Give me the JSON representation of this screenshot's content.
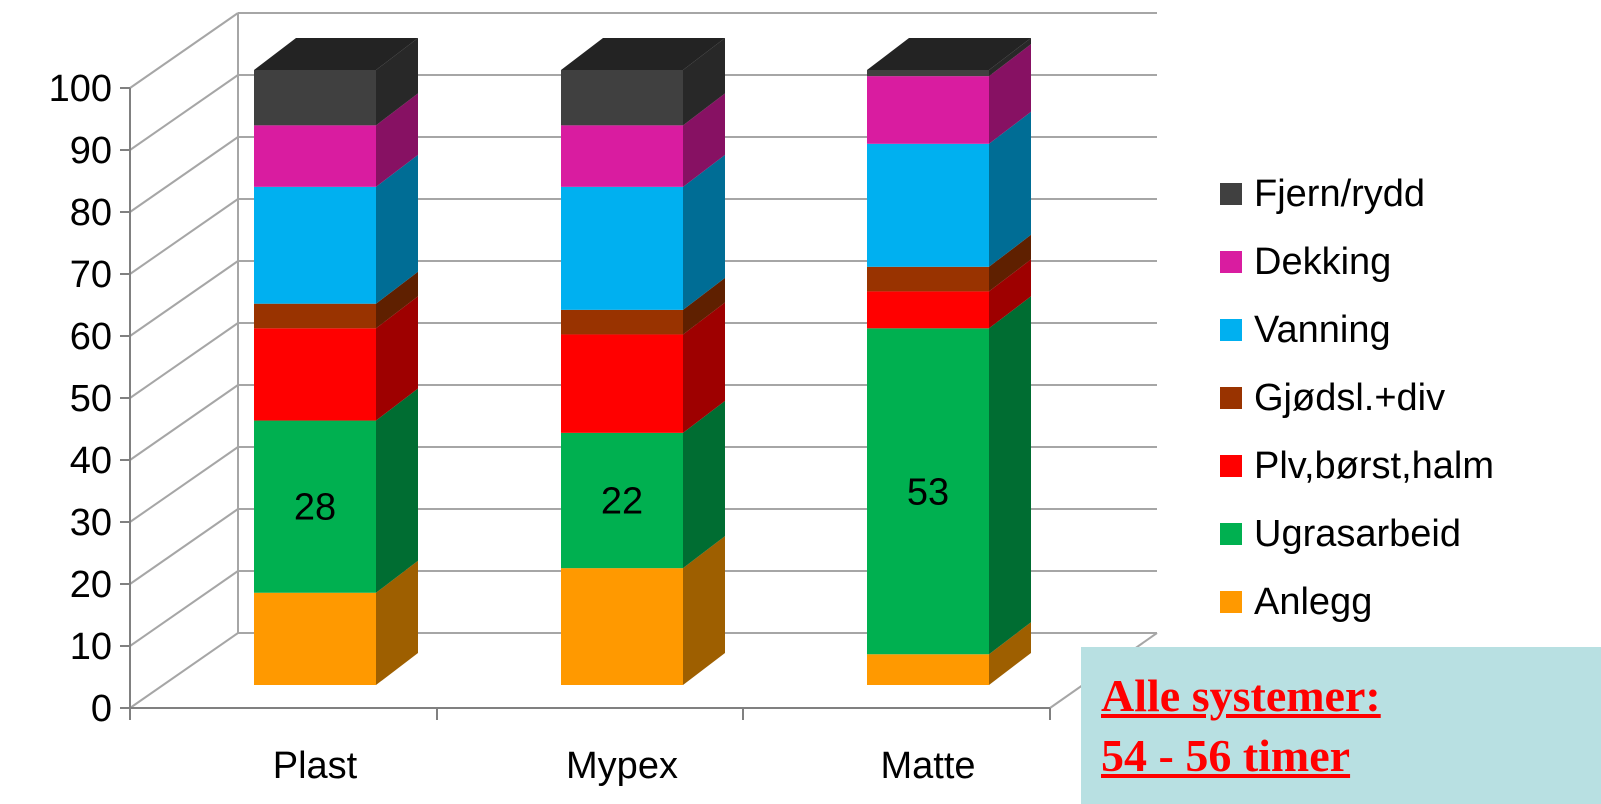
{
  "chart_data": {
    "type": "bar",
    "stacked": true,
    "three_d": true,
    "categories": [
      "Plast",
      "Mypex",
      "Matte"
    ],
    "ylim": [
      0,
      100
    ],
    "yticks": [
      "0",
      "10",
      "20",
      "30",
      "40",
      "50",
      "60",
      "70",
      "80",
      "90",
      "100"
    ],
    "grid": true,
    "legend_position": "right",
    "series": [
      {
        "name": "Anlegg",
        "color": "#ff9900",
        "values": [
          15,
          19,
          5
        ]
      },
      {
        "name": "Ugrasarbeid",
        "color": "#00b050",
        "values": [
          28,
          22,
          53
        ]
      },
      {
        "name": "Plv,børst,halm",
        "color": "#ff0000",
        "values": [
          15,
          16,
          6
        ]
      },
      {
        "name": "Gjødsl.+div",
        "color": "#993300",
        "values": [
          4,
          4,
          4
        ]
      },
      {
        "name": "Vanning",
        "color": "#00b0f0",
        "values": [
          19,
          20,
          20
        ]
      },
      {
        "name": "Dekking",
        "color": "#d91ca0",
        "values": [
          10,
          10,
          11
        ]
      },
      {
        "name": "Fjern/rydd",
        "color": "#404040",
        "values": [
          9,
          9,
          1
        ]
      }
    ],
    "data_labels": {
      "series": "Ugrasarbeid",
      "values": [
        "28",
        "22",
        "53"
      ]
    }
  },
  "note": {
    "line1": "Alle systemer:",
    "line2": "54 - 56 timer"
  }
}
